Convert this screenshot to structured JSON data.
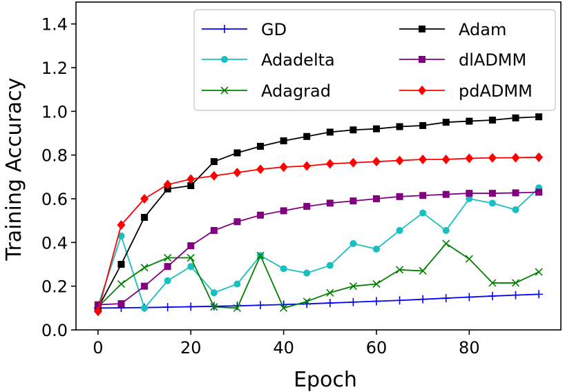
{
  "chart_data": {
    "type": "line",
    "title": "",
    "xlabel": "Epoch",
    "ylabel": "Training Accuracy",
    "xlim": [
      -4.75,
      99.75
    ],
    "ylim": [
      0.0,
      1.5
    ],
    "xticks": [
      0,
      20,
      40,
      60,
      80
    ],
    "yticks": [
      0.0,
      0.2,
      0.4,
      0.6,
      0.8,
      1.0,
      1.2,
      1.4
    ],
    "xtick_labels": [
      "0",
      "20",
      "40",
      "60",
      "80"
    ],
    "ytick_labels": [
      "0.0",
      "0.2",
      "0.4",
      "0.6",
      "0.8",
      "1.0",
      "1.2",
      "1.4"
    ],
    "grid": false,
    "legend_position": "top-right",
    "x": [
      0,
      5,
      10,
      15,
      20,
      25,
      30,
      35,
      40,
      45,
      50,
      55,
      60,
      65,
      70,
      75,
      80,
      85,
      90,
      95
    ],
    "series": [
      {
        "name": "GD",
        "color": "#0000ff",
        "marker": "plus",
        "values": [
          0.1,
          0.101,
          0.102,
          0.104,
          0.106,
          0.108,
          0.11,
          0.113,
          0.116,
          0.119,
          0.123,
          0.127,
          0.131,
          0.135,
          0.14,
          0.145,
          0.15,
          0.155,
          0.159,
          0.163
        ]
      },
      {
        "name": "Adadelta",
        "color": "#17bfbf",
        "marker": "circle",
        "values": [
          0.11,
          0.43,
          0.1,
          0.225,
          0.29,
          0.17,
          0.21,
          0.34,
          0.28,
          0.26,
          0.295,
          0.395,
          0.37,
          0.455,
          0.535,
          0.455,
          0.6,
          0.58,
          0.55,
          0.65
        ]
      },
      {
        "name": "Adagrad",
        "color": "#008000",
        "marker": "x",
        "values": [
          0.105,
          0.21,
          0.285,
          0.33,
          0.33,
          0.105,
          0.1,
          0.34,
          0.1,
          0.13,
          0.17,
          0.2,
          0.21,
          0.275,
          0.27,
          0.395,
          0.325,
          0.215,
          0.215,
          0.265
        ]
      },
      {
        "name": "Adam",
        "color": "#000000",
        "marker": "square",
        "values": [
          0.1,
          0.3,
          0.515,
          0.645,
          0.66,
          0.77,
          0.81,
          0.84,
          0.865,
          0.885,
          0.905,
          0.915,
          0.92,
          0.93,
          0.935,
          0.95,
          0.955,
          0.96,
          0.97,
          0.975
        ]
      },
      {
        "name": "dlADMM",
        "color": "#800080",
        "marker": "square",
        "values": [
          0.115,
          0.12,
          0.2,
          0.29,
          0.385,
          0.455,
          0.495,
          0.525,
          0.545,
          0.565,
          0.58,
          0.59,
          0.6,
          0.61,
          0.615,
          0.62,
          0.625,
          0.625,
          0.627,
          0.63
        ]
      },
      {
        "name": "pdADMM",
        "color": "#ff0000",
        "marker": "diamond",
        "values": [
          0.085,
          0.48,
          0.6,
          0.665,
          0.69,
          0.705,
          0.72,
          0.735,
          0.745,
          0.75,
          0.76,
          0.765,
          0.77,
          0.775,
          0.78,
          0.78,
          0.785,
          0.787,
          0.788,
          0.79
        ]
      }
    ]
  }
}
